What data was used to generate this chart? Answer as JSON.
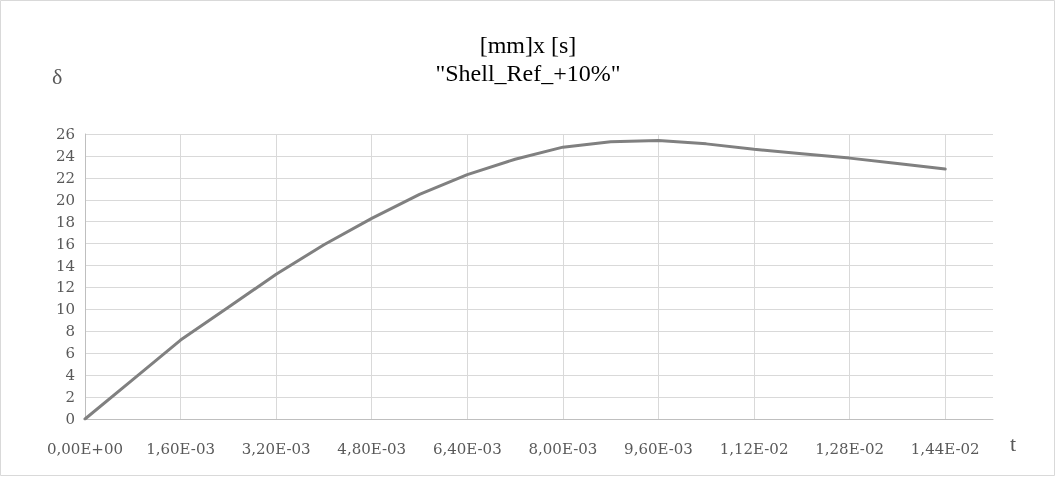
{
  "chart_data": {
    "type": "line",
    "title": "[mm]x [s]",
    "subtitle": "\"Shell_Ref_+10%\"",
    "xlabel": "t",
    "ylabel": "δ",
    "categories": [
      "0,00E+00",
      null,
      "1,60E-03",
      null,
      "3,20E-03",
      null,
      "4,80E-03",
      null,
      "6,40E-03",
      null,
      "8,00E-03",
      null,
      "9,60E-03",
      null,
      "1,12E-02",
      null,
      "1,28E-02",
      null,
      "1,44E-02",
      null
    ],
    "series": [
      {
        "color": "#808080",
        "values": [
          0,
          3.6,
          7.2,
          10.2,
          13.2,
          15.9,
          18.3,
          20.5,
          22.3,
          23.7,
          24.8,
          25.3,
          25.4,
          25.1,
          24.6,
          24.2,
          23.8,
          23.3,
          22.8,
          null
        ]
      }
    ],
    "ylim": [
      0,
      26
    ],
    "yticks": [
      0,
      2,
      4,
      6,
      8,
      10,
      12,
      14,
      16,
      18,
      20,
      22,
      24,
      26
    ],
    "grid": true,
    "marker": "none",
    "line_style": "solid"
  }
}
